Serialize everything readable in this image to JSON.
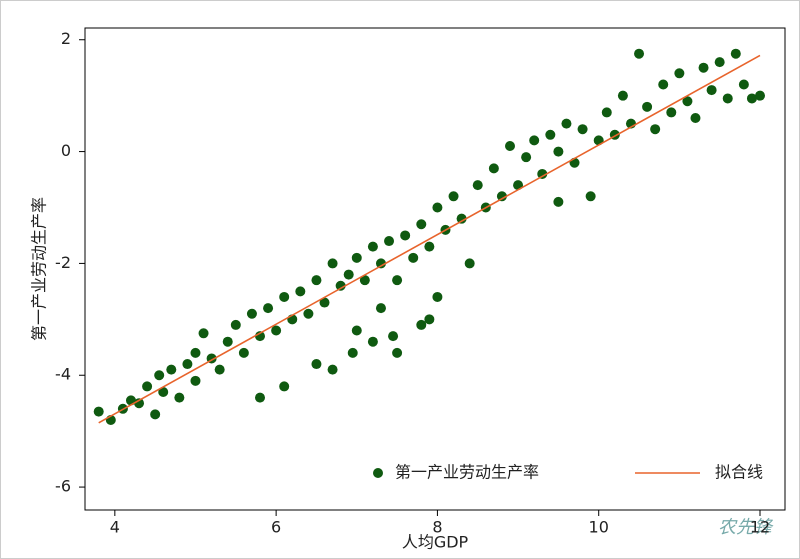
{
  "chart_data": {
    "type": "scatter",
    "x_label": "人均GDP",
    "y_label": "第一产业劳动生产率",
    "xlim": [
      3.63,
      12.31
    ],
    "ylim": [
      -6.41,
      2.21
    ],
    "xticks": [
      4,
      6,
      8,
      10,
      12
    ],
    "yticks": [
      -6,
      -4,
      -2,
      0,
      2
    ],
    "legend_position": "bottom-right",
    "series": [
      {
        "name": "第一产业劳动生产率",
        "color": "#0f5a10",
        "kind": "points",
        "x": [
          3.8,
          3.95,
          4.1,
          4.2,
          4.3,
          4.4,
          4.5,
          4.55,
          4.6,
          4.7,
          4.8,
          4.9,
          5.0,
          5.0,
          5.1,
          5.2,
          5.3,
          5.4,
          5.5,
          5.6,
          5.7,
          5.8,
          5.8,
          5.9,
          6.0,
          6.1,
          6.1,
          6.2,
          6.3,
          6.4,
          6.5,
          6.5,
          6.6,
          6.7,
          6.7,
          6.8,
          6.9,
          6.95,
          7.0,
          7.0,
          7.1,
          7.2,
          7.2,
          7.3,
          7.3,
          7.4,
          7.45,
          7.5,
          7.5,
          7.6,
          7.7,
          7.8,
          7.8,
          7.9,
          7.9,
          8.0,
          8.0,
          8.1,
          8.2,
          8.3,
          8.4,
          8.5,
          8.6,
          8.7,
          8.8,
          8.9,
          9.0,
          9.1,
          9.2,
          9.3,
          9.4,
          9.5,
          9.5,
          9.6,
          9.7,
          9.8,
          9.9,
          10.0,
          10.1,
          10.2,
          10.3,
          10.4,
          10.5,
          10.6,
          10.7,
          10.8,
          10.9,
          11.0,
          11.1,
          11.2,
          11.3,
          11.4,
          11.5,
          11.6,
          11.7,
          11.8,
          11.9,
          12.0
        ],
        "values": [
          -4.65,
          -4.8,
          -4.6,
          -4.45,
          -4.5,
          -4.2,
          -4.7,
          -4.0,
          -4.3,
          -3.9,
          -4.4,
          -3.8,
          -3.6,
          -4.1,
          -3.25,
          -3.7,
          -3.9,
          -3.4,
          -3.1,
          -3.6,
          -2.9,
          -4.4,
          -3.3,
          -2.8,
          -3.2,
          -2.6,
          -4.2,
          -3.0,
          -2.5,
          -2.9,
          -2.3,
          -3.8,
          -2.7,
          -2.0,
          -3.9,
          -2.4,
          -2.2,
          -3.6,
          -1.9,
          -3.2,
          -2.3,
          -1.7,
          -3.4,
          -2.0,
          -2.8,
          -1.6,
          -3.3,
          -2.3,
          -3.6,
          -1.5,
          -1.9,
          -3.1,
          -1.3,
          -3.0,
          -1.7,
          -1.0,
          -2.6,
          -1.4,
          -0.8,
          -1.2,
          -2.0,
          -0.6,
          -1.0,
          -0.3,
          -0.8,
          0.1,
          -0.6,
          -0.1,
          0.2,
          -0.4,
          0.3,
          -0.9,
          0.0,
          0.5,
          -0.2,
          0.4,
          -0.8,
          0.2,
          0.7,
          0.3,
          1.0,
          0.5,
          1.75,
          0.8,
          0.4,
          1.2,
          0.7,
          1.4,
          0.9,
          0.6,
          1.5,
          1.1,
          1.6,
          0.95,
          1.75,
          1.2,
          0.95,
          1.0
        ]
      },
      {
        "name": "拟合线",
        "color": "#e8642c",
        "kind": "line",
        "x": [
          3.8,
          12.0
        ],
        "values": [
          -4.85,
          1.72
        ]
      }
    ],
    "watermark": "农先锋"
  }
}
